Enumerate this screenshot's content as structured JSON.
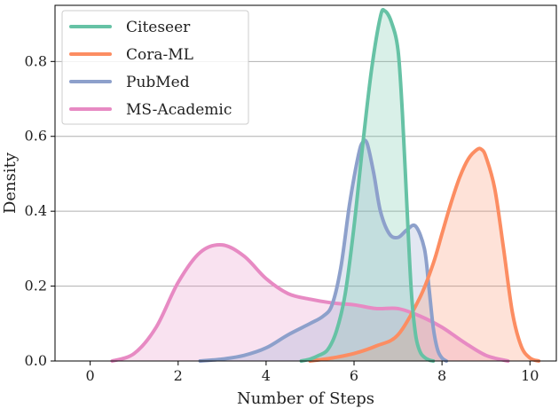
{
  "chart_data": {
    "type": "area",
    "xlabel": "Number of Steps",
    "ylabel": "Density",
    "xlim": [
      -0.8,
      10.6
    ],
    "ylim": [
      0,
      0.95
    ],
    "xticks": [
      0,
      2,
      4,
      6,
      8,
      10
    ],
    "yticks": [
      0.0,
      0.2,
      0.4,
      0.6,
      0.8
    ],
    "ytick_labels": [
      "0.0",
      "0.2",
      "0.4",
      "0.6",
      "0.8"
    ],
    "grid": "horizontal",
    "legend_position": "top-left",
    "series": [
      {
        "name": "Citeseer",
        "color": "#66c2a5",
        "x": [
          4.8,
          5.0,
          5.2,
          5.4,
          5.6,
          5.8,
          6.0,
          6.2,
          6.4,
          6.6,
          6.7,
          6.85,
          7.0,
          7.1,
          7.2,
          7.3,
          7.4,
          7.5,
          7.6,
          7.7,
          7.8
        ],
        "y": [
          0.0,
          0.005,
          0.015,
          0.03,
          0.08,
          0.18,
          0.36,
          0.58,
          0.78,
          0.92,
          0.935,
          0.905,
          0.83,
          0.66,
          0.42,
          0.19,
          0.07,
          0.025,
          0.01,
          0.003,
          0.0
        ]
      },
      {
        "name": "Cora-ML",
        "color": "#fc8d62",
        "x": [
          5.0,
          5.5,
          6.0,
          6.5,
          7.0,
          7.5,
          7.8,
          8.0,
          8.2,
          8.4,
          8.6,
          8.8,
          8.9,
          9.0,
          9.2,
          9.4,
          9.6,
          9.8,
          10.0,
          10.2
        ],
        "y": [
          0.0,
          0.008,
          0.02,
          0.04,
          0.07,
          0.17,
          0.26,
          0.34,
          0.42,
          0.49,
          0.54,
          0.565,
          0.565,
          0.545,
          0.46,
          0.3,
          0.13,
          0.04,
          0.008,
          0.0
        ]
      },
      {
        "name": "PubMed",
        "color": "#8da0cb",
        "x": [
          2.5,
          3.0,
          3.5,
          4.0,
          4.5,
          5.0,
          5.3,
          5.5,
          5.7,
          5.9,
          6.1,
          6.2,
          6.3,
          6.45,
          6.6,
          6.8,
          7.0,
          7.2,
          7.4,
          7.6,
          7.7,
          7.8,
          7.9,
          8.0,
          8.1
        ],
        "y": [
          0.0,
          0.005,
          0.015,
          0.035,
          0.07,
          0.1,
          0.12,
          0.15,
          0.25,
          0.42,
          0.55,
          0.585,
          0.58,
          0.5,
          0.4,
          0.34,
          0.33,
          0.35,
          0.36,
          0.3,
          0.2,
          0.09,
          0.03,
          0.008,
          0.0
        ]
      },
      {
        "name": "MS-Academic",
        "color": "#e78ac3",
        "x": [
          0.5,
          1.0,
          1.5,
          2.0,
          2.5,
          3.0,
          3.5,
          4.0,
          4.5,
          5.0,
          5.5,
          6.0,
          6.5,
          7.0,
          7.5,
          8.0,
          8.5,
          9.0,
          9.5
        ],
        "y": [
          0.0,
          0.02,
          0.09,
          0.21,
          0.29,
          0.31,
          0.28,
          0.22,
          0.18,
          0.165,
          0.155,
          0.15,
          0.14,
          0.14,
          0.12,
          0.09,
          0.05,
          0.015,
          0.0
        ]
      }
    ]
  }
}
